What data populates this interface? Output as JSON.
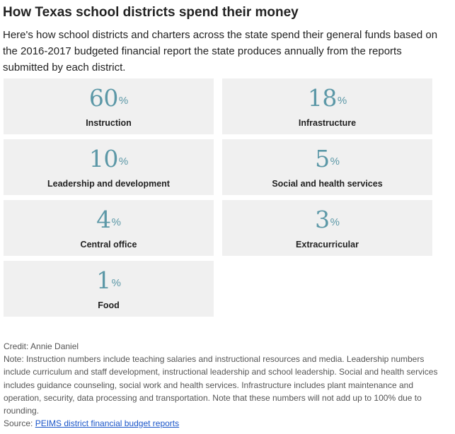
{
  "title": "How Texas school districts spend their money",
  "intro": "Here's how school districts and charters across the state spend their general funds based on the 2016-2017 budgeted financial report the state produces annually from the reports submitted by each district.",
  "colors": {
    "accent": "#5c98a7",
    "card_bg": "#f0f0f0",
    "link": "#1a55c9"
  },
  "cards": [
    {
      "value": "60",
      "unit": "%",
      "label": "Instruction"
    },
    {
      "value": "18",
      "unit": "%",
      "label": "Infrastructure"
    },
    {
      "value": "10",
      "unit": "%",
      "label": "Leadership and development"
    },
    {
      "value": "5",
      "unit": "%",
      "label": "Social and health services"
    },
    {
      "value": "4",
      "unit": "%",
      "label": "Central office"
    },
    {
      "value": "3",
      "unit": "%",
      "label": "Extracurricular"
    },
    {
      "value": "1",
      "unit": "%",
      "label": "Food"
    }
  ],
  "footer": {
    "credit": "Credit: Annie Daniel",
    "note": "Note: Instruction numbers include teaching salaries and instructional resources and media. Leadership numbers include curriculum and staff development, instructional leadership and school leadership. Social and health services includes guidance counseling, social work and health services. Infrastructure includes plant maintenance and operation, security, data processing and transportation. Note that these numbers will not add up to 100% due to rounding.",
    "source_prefix": "Source: ",
    "source_link": "PEIMS district financial budget reports"
  }
}
